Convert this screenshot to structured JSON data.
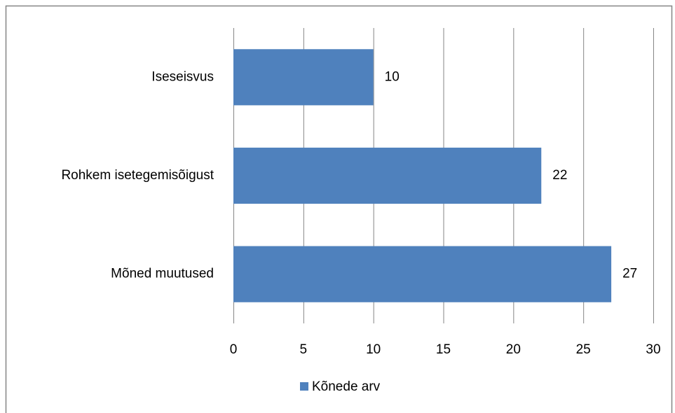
{
  "chart_data": {
    "type": "barh",
    "categories": [
      "Iseseisvus",
      "Rohkem isetegemisõigust",
      "Mõned muutused"
    ],
    "series": [
      {
        "name": "Kõnede arv",
        "color": "#4f81bd",
        "values": [
          10,
          22,
          27
        ]
      }
    ],
    "xlim": [
      0,
      30
    ],
    "xticks": [
      0,
      5,
      10,
      15,
      20,
      25,
      30
    ],
    "grid": true,
    "legend": "bottom",
    "data_labels": true
  }
}
